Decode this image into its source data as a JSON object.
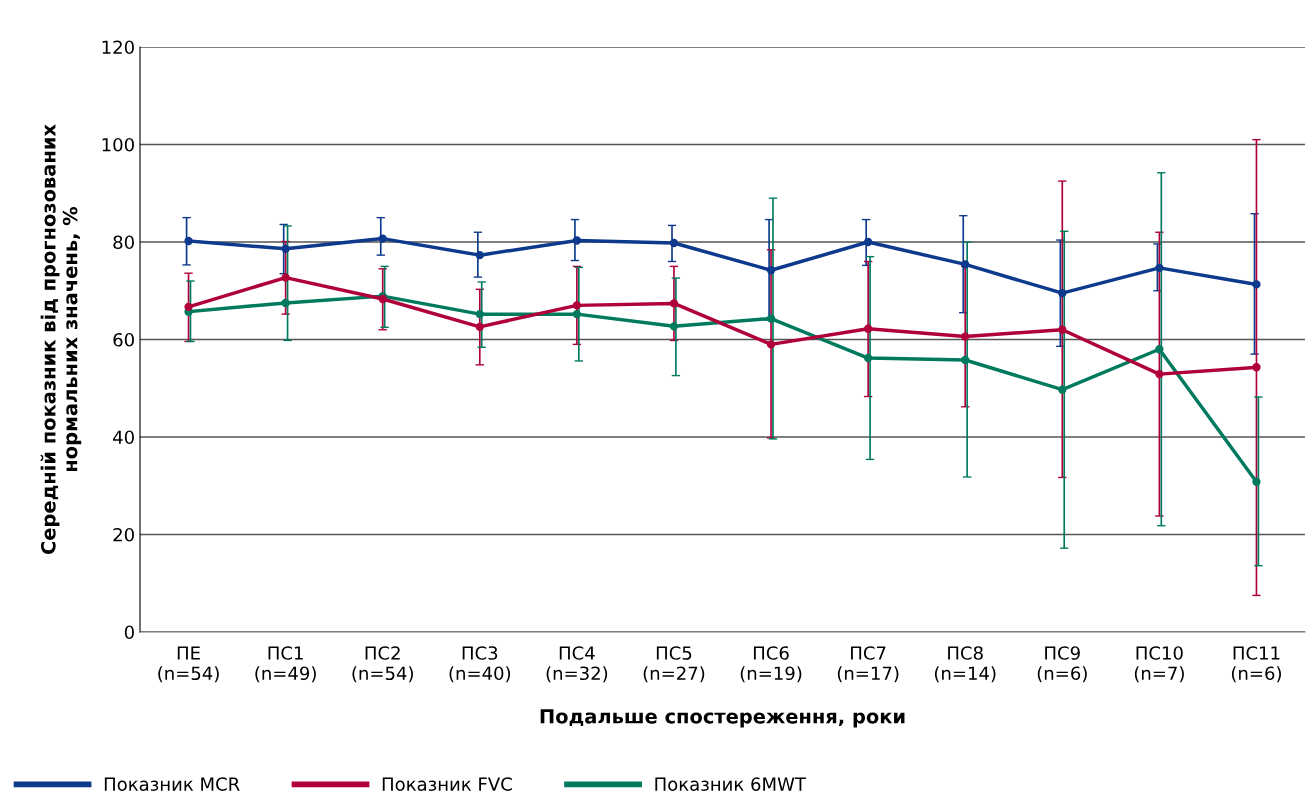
{
  "chart_data": {
    "type": "line",
    "xlabel": "Подальше спостереження, роки",
    "ylabel": "Середній показник від прогнозованих\nнормальних значень, %",
    "categories": [
      "ПЕ\n(n=54)",
      "ПС1\n(n=49)",
      "ПС2\n(n=54)",
      "ПС3\n(n=40)",
      "ПС4\n(n=32)",
      "ПС5\n(n=27)",
      "ПС6\n(n=19)",
      "ПС7\n(n=17)",
      "ПС8\n(n=14)",
      "ПС9\n(n=6)",
      "ПС10\n(n=7)",
      "ПС11\n(n=6)"
    ],
    "series": [
      {
        "name": "Показник MCR",
        "color": "#0d3a8c",
        "values": [
          80.2,
          78.6,
          80.7,
          77.3,
          80.3,
          79.8,
          74.2,
          80.0,
          75.4,
          69.5,
          74.7,
          71.3
        ],
        "errors": [
          [
            75.3,
            85
          ],
          [
            73.5,
            83.6
          ],
          [
            77.3,
            85
          ],
          [
            72.8,
            82
          ],
          [
            76.2,
            84.6
          ],
          [
            76,
            83.4
          ],
          [
            64,
            84.6
          ],
          [
            75.2,
            84.6
          ],
          [
            65.5,
            85.4
          ],
          [
            58.6,
            80.4
          ],
          [
            70,
            79.6
          ],
          [
            57,
            85.8
          ]
        ]
      },
      {
        "name": "Показник FVC",
        "color": "#b0003a",
        "values": [
          66.7,
          72.7,
          68.3,
          62.6,
          67.0,
          67.4,
          59.0,
          62.2,
          60.6,
          62.0,
          52.9,
          54.3
        ],
        "errors": [
          [
            59.6,
            73.6
          ],
          [
            65.2,
            80.1
          ],
          [
            62,
            74.5
          ],
          [
            54.8,
            70.3
          ],
          [
            59,
            75
          ],
          [
            59.8,
            75
          ],
          [
            39.8,
            78.4
          ],
          [
            48.3,
            76
          ],
          [
            46.2,
            75
          ],
          [
            31.7,
            92.5
          ],
          [
            23.8,
            82
          ],
          [
            7.5,
            101
          ]
        ]
      },
      {
        "name": "Показник 6MWT",
        "color": "#007a5e",
        "values": [
          65.7,
          67.5,
          68.9,
          65.2,
          65.2,
          62.7,
          64.3,
          56.2,
          55.8,
          49.7,
          58.0,
          30.8
        ],
        "errors": [
          [
            59.6,
            72
          ],
          [
            59.8,
            83.3
          ],
          [
            62.5,
            75
          ],
          [
            58.4,
            71.8
          ],
          [
            55.6,
            74.8
          ],
          [
            52.6,
            72.6
          ],
          [
            39.6,
            89
          ],
          [
            35.4,
            77
          ],
          [
            31.8,
            80
          ],
          [
            17.2,
            82.2
          ],
          [
            21.8,
            94.2
          ],
          [
            13.6,
            48.2
          ]
        ]
      }
    ],
    "ylim": [
      0,
      120
    ],
    "yticks": [
      0,
      20,
      40,
      60,
      80,
      100,
      120
    ],
    "grid": "y",
    "legend": "bottom left",
    "marker": "circle",
    "line_style": "solid"
  }
}
